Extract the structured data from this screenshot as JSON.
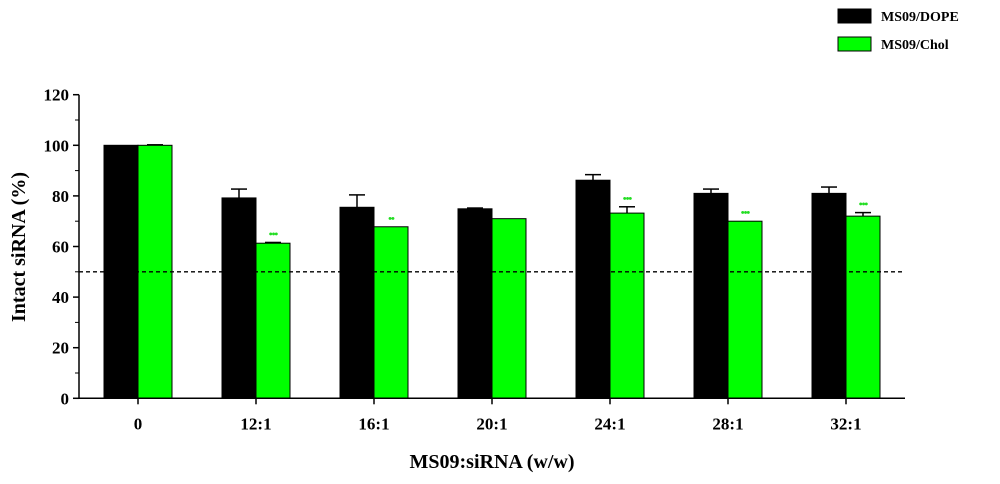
{
  "chart_data": {
    "type": "bar",
    "title": "",
    "xlabel": "MS09:siRNA (w/w)",
    "ylabel": "Intact siRNA (%)",
    "ylim": [
      0,
      120
    ],
    "yticks": [
      0,
      20,
      40,
      60,
      80,
      100,
      120
    ],
    "ytick_labels": [
      "0",
      "20",
      "40",
      "60",
      "80",
      "100",
      "120"
    ],
    "categories": [
      "0",
      "12:1",
      "16:1",
      "20:1",
      "24:1",
      "28:1",
      "32:1"
    ],
    "reference_line": 50,
    "legend_position": "top-right",
    "series": [
      {
        "name": "MS09/DOPE",
        "color": "#000000",
        "values": [
          100,
          79.2,
          75.5,
          74.9,
          86.2,
          81.0,
          81.0
        ],
        "errors": [
          0,
          3.5,
          4.9,
          0.3,
          2.2,
          1.7,
          2.5
        ],
        "significance": [
          "",
          "",
          "",
          "",
          "",
          "",
          ""
        ]
      },
      {
        "name": "MS09/Chol",
        "color": "#00ff00",
        "values": [
          100,
          61.3,
          67.8,
          71.0,
          73.2,
          70.0,
          72.0
        ],
        "errors": [
          0.2,
          0.3,
          0,
          0,
          2.5,
          0,
          1.4
        ],
        "significance": [
          "",
          "•••",
          "••",
          "",
          "•••",
          "•••",
          "•••"
        ]
      }
    ]
  }
}
